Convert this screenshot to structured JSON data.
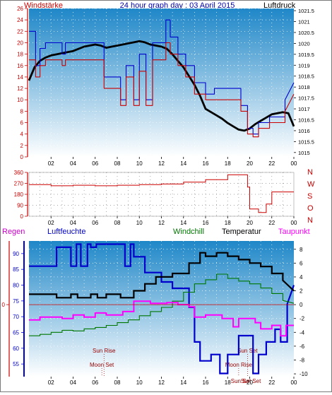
{
  "header": {
    "left_label": "Windstärke",
    "title": "24 hour graph day : 03 April 2015",
    "right_label": "Luftdruck"
  },
  "legend": {
    "regen": "Regen",
    "luftfeuchte": "Luftfeuchte",
    "windchill": "Windchill",
    "temperatur": "Temperatur",
    "taupunkt": "Taupunkt"
  },
  "colors": {
    "wind_axis": "#cc0000",
    "pressure_line": "#000000",
    "wind_gust": "#0000cc",
    "wind_avg": "#cc0000",
    "direction": "#cc0000",
    "humidity": "#0000cc",
    "windchill": "#007700",
    "temperature": "#000000",
    "dewpoint": "#ff00ff",
    "rain_axis": "#cc0000",
    "humidity_axis": "#0000cc",
    "sun": "#990000",
    "grad_top": "#1f87c8",
    "grad_bottom": "#ffffff"
  },
  "chart_data": [
    {
      "type": "line",
      "x_ticks": [
        "02",
        "04",
        "06",
        "08",
        "10",
        "12",
        "14",
        "16",
        "18",
        "20",
        "22",
        "00"
      ],
      "xlim": [
        0,
        24
      ],
      "left_axis": {
        "ticks": [
          "0",
          "2",
          "4",
          "6",
          "8",
          "10",
          "12",
          "14",
          "16",
          "18",
          "20",
          "22",
          "24",
          "26"
        ],
        "ylim": [
          0,
          26
        ]
      },
      "right_axis": {
        "ticks": [
          "1015",
          "1015.5",
          "1016",
          "1016.5",
          "1017",
          "1017.5",
          "1018",
          "1018.5",
          "1019",
          "1019.5",
          "1020",
          "1020.5",
          "1021",
          "1021.5"
        ],
        "ylim": [
          1014.8,
          1021.6
        ]
      },
      "series": [
        {
          "role": "pressure",
          "axis": "right",
          "x": [
            0,
            0.5,
            1,
            1.5,
            2,
            2.5,
            3,
            3.5,
            4,
            4.5,
            5,
            5.5,
            6,
            6.5,
            7,
            7.5,
            8,
            8.5,
            9,
            9.5,
            10,
            10.5,
            11,
            11.5,
            12,
            12.5,
            13,
            13.5,
            14,
            14.5,
            15,
            15.5,
            16,
            16.5,
            17,
            17.5,
            18,
            18.5,
            19,
            19.5,
            20,
            20.5,
            21,
            21.5,
            22,
            22.5,
            23,
            23.5,
            24
          ],
          "y": [
            1018.3,
            1018.9,
            1019.2,
            1019.35,
            1019.45,
            1019.5,
            1019.55,
            1019.6,
            1019.65,
            1019.75,
            1019.85,
            1019.9,
            1019.95,
            1019.9,
            1019.8,
            1019.85,
            1019.9,
            1019.95,
            1020.0,
            1020.05,
            1020.1,
            1020.05,
            1019.95,
            1019.9,
            1019.85,
            1019.75,
            1019.5,
            1019.2,
            1018.9,
            1018.5,
            1018.1,
            1017.6,
            1017.0,
            1016.85,
            1016.7,
            1016.55,
            1016.35,
            1016.2,
            1016.05,
            1016.0,
            1016.1,
            1016.3,
            1016.45,
            1016.6,
            1016.75,
            1016.8,
            1016.85,
            1016.8,
            1016.2
          ]
        },
        {
          "role": "gust",
          "axis": "left",
          "x": [
            0,
            0.6,
            0.6,
            1.0,
            1.0,
            1.5,
            1.5,
            3.0,
            3.0,
            3.3,
            3.3,
            4.5,
            4.5,
            6.8,
            6.8,
            8.3,
            8.3,
            8.8,
            8.8,
            9.5,
            9.5,
            10.0,
            10.0,
            10.6,
            10.6,
            11.2,
            11.2,
            12.4,
            12.4,
            12.8,
            12.8,
            13.5,
            13.5,
            14.2,
            14.2,
            15.0,
            15.0,
            16.0,
            16.0,
            16.8,
            16.8,
            19.2,
            19.2,
            19.8,
            19.8,
            20.3,
            20.3,
            20.8,
            20.8,
            21.8,
            21.8,
            23.2,
            23.2,
            24
          ],
          "y": [
            22,
            22,
            16,
            16,
            19,
            19,
            20,
            20,
            18,
            18,
            20,
            20,
            20,
            20,
            14,
            14,
            10,
            10,
            16,
            16,
            10,
            10,
            18,
            18,
            10,
            10,
            20,
            20,
            24,
            24,
            21,
            21,
            18,
            18,
            16,
            16,
            13,
            13,
            11,
            11,
            12,
            12,
            9,
            9,
            5,
            5,
            4,
            4,
            6,
            6,
            7,
            7,
            10,
            13
          ]
        },
        {
          "role": "avg",
          "axis": "left",
          "x": [
            0,
            0.6,
            0.6,
            1.0,
            1.0,
            1.5,
            1.5,
            3.0,
            3.0,
            3.3,
            3.3,
            4.5,
            4.5,
            6.8,
            6.8,
            8.3,
            8.3,
            8.8,
            8.8,
            9.5,
            9.5,
            10.0,
            10.0,
            10.6,
            10.6,
            11.2,
            11.2,
            12.4,
            12.4,
            12.8,
            12.8,
            13.5,
            13.5,
            14.2,
            14.2,
            15.0,
            15.0,
            16.0,
            16.0,
            16.8,
            16.8,
            19.2,
            19.2,
            19.8,
            19.8,
            20.3,
            20.3,
            20.8,
            20.8,
            21.8,
            21.8,
            23.2,
            23.2,
            24
          ],
          "y": [
            17,
            17,
            14,
            14,
            16,
            16,
            17,
            17,
            16,
            16,
            17,
            17,
            17,
            17,
            12,
            12,
            9,
            9,
            14,
            14,
            9,
            9,
            15,
            15,
            9,
            9,
            17,
            17,
            20,
            20,
            18,
            18,
            16,
            16,
            14,
            14,
            11,
            11,
            10,
            10,
            10,
            10,
            8,
            8,
            4,
            4,
            3.5,
            3.5,
            5,
            5,
            6,
            6,
            8,
            11
          ]
        }
      ]
    },
    {
      "type": "line",
      "x_ticks": [
        "02",
        "04",
        "06",
        "08",
        "10",
        "12",
        "14",
        "16",
        "18",
        "20",
        "22",
        "00"
      ],
      "xlim": [
        0,
        24
      ],
      "left_axis": {
        "ticks": [
          "0",
          "90",
          "180",
          "270",
          "360"
        ],
        "ylim": [
          0,
          360
        ]
      },
      "right_axis": {
        "ticks": [
          "N",
          "W",
          "S",
          "O",
          "N"
        ]
      },
      "series": [
        {
          "role": "direction",
          "x": [
            0,
            2,
            2,
            4,
            4,
            6,
            6,
            8,
            8,
            10,
            10,
            12,
            12,
            14,
            14,
            16,
            16,
            18,
            18,
            19.8,
            19.8,
            20.0,
            20.0,
            20.8,
            20.8,
            21.5,
            21.5,
            22.0,
            22.0,
            24
          ],
          "y": [
            260,
            260,
            250,
            250,
            255,
            255,
            250,
            250,
            255,
            255,
            260,
            260,
            265,
            265,
            280,
            280,
            300,
            300,
            340,
            340,
            240,
            240,
            60,
            60,
            30,
            30,
            100,
            100,
            200,
            200
          ]
        }
      ]
    },
    {
      "type": "line",
      "x_ticks": [
        "02",
        "04",
        "06",
        "08",
        "10",
        "12",
        "14",
        "16",
        "18",
        "20",
        "22",
        "00"
      ],
      "xlim": [
        0,
        24
      ],
      "left_axis": {
        "ticks": [
          "55",
          "60",
          "65",
          "70",
          "75",
          "80",
          "85",
          "90"
        ],
        "ylim": [
          51,
          94
        ]
      },
      "right_axis": {
        "ticks": [
          "-10",
          "-8",
          "-6",
          "-4",
          "-2",
          "0",
          "2",
          "4",
          "6",
          "8"
        ],
        "ylim": [
          -10.4,
          9.2
        ]
      },
      "rain_axis": {
        "ticks": [
          "0"
        ]
      },
      "annotations": [
        {
          "label": "Sun Rise",
          "x": 6.8
        },
        {
          "label": "Sun Set",
          "x": 19.8
        },
        {
          "label": "Moon Set",
          "x": 6.6
        },
        {
          "label": "Moon Rise",
          "x": 19.0
        },
        {
          "label": "Sun Set",
          "x": 19.2
        },
        {
          "label": "Sun Set",
          "x": 20.1
        }
      ],
      "series": [
        {
          "role": "humidity",
          "axis": "left",
          "x": [
            0,
            2.5,
            2.5,
            3.8,
            3.8,
            4.3,
            4.3,
            4.7,
            4.7,
            5.3,
            5.3,
            5.6,
            5.6,
            6.1,
            6.1,
            6.8,
            6.8,
            8.7,
            8.7,
            9.2,
            9.2,
            9.5,
            9.5,
            10.5,
            10.5,
            12.0,
            12.0,
            13.0,
            13.0,
            14.5,
            14.5,
            15.0,
            15.0,
            15.5,
            15.5,
            16.5,
            16.5,
            17.3,
            17.3,
            18.0,
            18.0,
            19.0,
            19.0,
            20.3,
            20.3,
            20.8,
            20.8,
            21.5,
            21.5,
            22.3,
            22.3,
            22.8,
            22.8,
            23.4,
            23.4,
            24
          ],
          "y": [
            86,
            86,
            92,
            92,
            86,
            86,
            93,
            93,
            86,
            86,
            93,
            93,
            92,
            92,
            93,
            93,
            93,
            93,
            86,
            86,
            93,
            93,
            89,
            89,
            84,
            84,
            81,
            81,
            79,
            79,
            73,
            73,
            62,
            62,
            56,
            56,
            58,
            58,
            52,
            52,
            58,
            58,
            64,
            64,
            52,
            52,
            58,
            58,
            62,
            62,
            66,
            66,
            62,
            62,
            74,
            80
          ]
        },
        {
          "role": "windchill",
          "axis": "right",
          "x": [
            0,
            1,
            1,
            2,
            2,
            3,
            3,
            4,
            4,
            5,
            5,
            6,
            6,
            7,
            7,
            8,
            8,
            9,
            9,
            10,
            10,
            11,
            11,
            12,
            12,
            13,
            13,
            14,
            14,
            15,
            15,
            16,
            16,
            17,
            17,
            18,
            18,
            19,
            19,
            20,
            20,
            21,
            21,
            22,
            22,
            23,
            23,
            24
          ],
          "y": [
            -4.5,
            -4.5,
            -4.3,
            -4.3,
            -4.0,
            -4.0,
            -3.7,
            -3.7,
            -3.8,
            -3.8,
            -3.5,
            -3.5,
            -3.3,
            -3.3,
            -3.0,
            -3.0,
            -2.6,
            -2.6,
            -2.2,
            -2.2,
            -1.6,
            -1.6,
            -1.0,
            -1.0,
            -0.4,
            -0.4,
            0.5,
            0.5,
            1.8,
            1.8,
            3.0,
            3.0,
            3.6,
            3.6,
            4.4,
            4.4,
            3.8,
            3.8,
            3.4,
            3.4,
            3.0,
            3.0,
            2.4,
            2.4,
            1.6,
            1.6,
            0.6,
            0.2
          ]
        },
        {
          "role": "temperature",
          "axis": "right",
          "x": [
            0,
            2.5,
            2.5,
            3.8,
            3.8,
            4.4,
            4.4,
            5.6,
            5.6,
            6.2,
            6.2,
            7.0,
            7.0,
            8.3,
            8.3,
            9.5,
            9.5,
            10.5,
            10.5,
            11.5,
            11.5,
            13.0,
            13.0,
            14.5,
            14.5,
            15.5,
            15.5,
            16.0,
            16.0,
            17.0,
            17.0,
            18.0,
            18.0,
            19.0,
            19.0,
            20.0,
            20.0,
            21.0,
            21.0,
            22.0,
            22.0,
            23.0,
            23.0,
            24
          ],
          "y": [
            1.5,
            1.5,
            1.0,
            1.0,
            1.5,
            1.5,
            1.0,
            1.0,
            1.5,
            1.5,
            1.0,
            1.0,
            1.5,
            1.5,
            1.0,
            1.0,
            2.0,
            2.0,
            3.0,
            3.0,
            4.0,
            4.0,
            4.5,
            4.5,
            6.0,
            6.0,
            7.5,
            7.5,
            7.0,
            7.0,
            7.5,
            7.5,
            7.0,
            7.0,
            6.5,
            6.5,
            6.0,
            6.0,
            5.5,
            5.5,
            4.5,
            4.5,
            3.5,
            2.0
          ]
        },
        {
          "role": "dewpoint",
          "axis": "right",
          "x": [
            0,
            1,
            1,
            3,
            3,
            4,
            4,
            5,
            5,
            6,
            6,
            7,
            7,
            8.5,
            8.5,
            9.5,
            9.5,
            11,
            11,
            12.5,
            12.5,
            13.5,
            13.5,
            14.5,
            14.5,
            15.0,
            15.0,
            16.0,
            16.0,
            17.5,
            17.5,
            18.5,
            18.5,
            19.0,
            19.0,
            20.5,
            20.5,
            21.0,
            21.0,
            22.0,
            22.0,
            22.8,
            22.8,
            23.3,
            23.3,
            24
          ],
          "y": [
            -2.2,
            -2.2,
            -1.8,
            -1.8,
            -2.0,
            -2.0,
            -1.5,
            -1.5,
            -1.8,
            -1.8,
            -1.2,
            -1.2,
            -1.5,
            -1.5,
            -1.0,
            -1.0,
            0.5,
            0.5,
            0.2,
            0.2,
            0.3,
            0.3,
            0.0,
            0.0,
            -0.3,
            -0.3,
            -1.8,
            -1.8,
            -1.5,
            -1.5,
            -2.0,
            -2.0,
            -3.2,
            -3.2,
            -2.0,
            -2.0,
            -2.6,
            -2.6,
            -3.5,
            -3.5,
            -3.0,
            -3.0,
            -4.5,
            -4.5,
            -3.0,
            -3.0
          ]
        }
      ]
    }
  ]
}
